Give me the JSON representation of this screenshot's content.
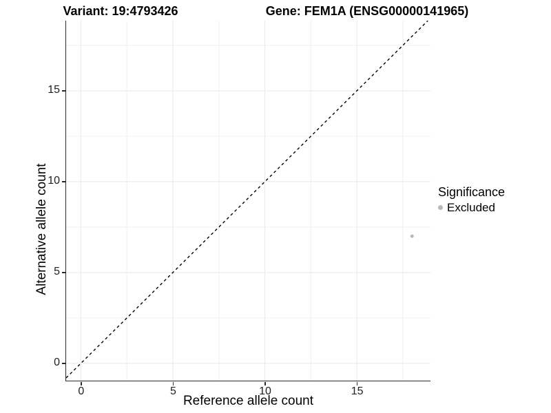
{
  "chart_data": {
    "type": "scatter",
    "titles": {
      "variant": "Variant: 19:4793426",
      "gene": "Gene: FEM1A (ENSG00000141965)"
    },
    "xlabel": "Reference allele count",
    "ylabel": "Alternative allele count",
    "xlim": [
      -0.8,
      19.0
    ],
    "ylim": [
      -0.95,
      18.86
    ],
    "x_ticks": [
      0,
      5,
      10,
      15
    ],
    "y_ticks": [
      0,
      5,
      10,
      15
    ],
    "x_minor_ticks": [
      2.5,
      7.5,
      12.5,
      17.5
    ],
    "y_minor_ticks": [
      2.5,
      7.5,
      12.5,
      17.5
    ],
    "grid": true,
    "reference_line": {
      "type": "identity y=x",
      "style": "dashed",
      "color": "#000000"
    },
    "series": [
      {
        "name": "Excluded",
        "color": "#b8b8b8",
        "point_radius": 2.5,
        "points": [
          {
            "x": 18,
            "y": 7
          }
        ]
      }
    ],
    "legend": {
      "position": "right",
      "title": "Significance",
      "items": [
        {
          "label": "Excluded",
          "color": "#b8b8b8"
        }
      ]
    }
  },
  "colors": {
    "background": "#ffffff",
    "axis_line": "#2a2a2a",
    "tick_label": "#1f1f1f",
    "grid_major": "#e8e8e8",
    "grid_minor": "#f0f0f0",
    "title": "#000000"
  }
}
